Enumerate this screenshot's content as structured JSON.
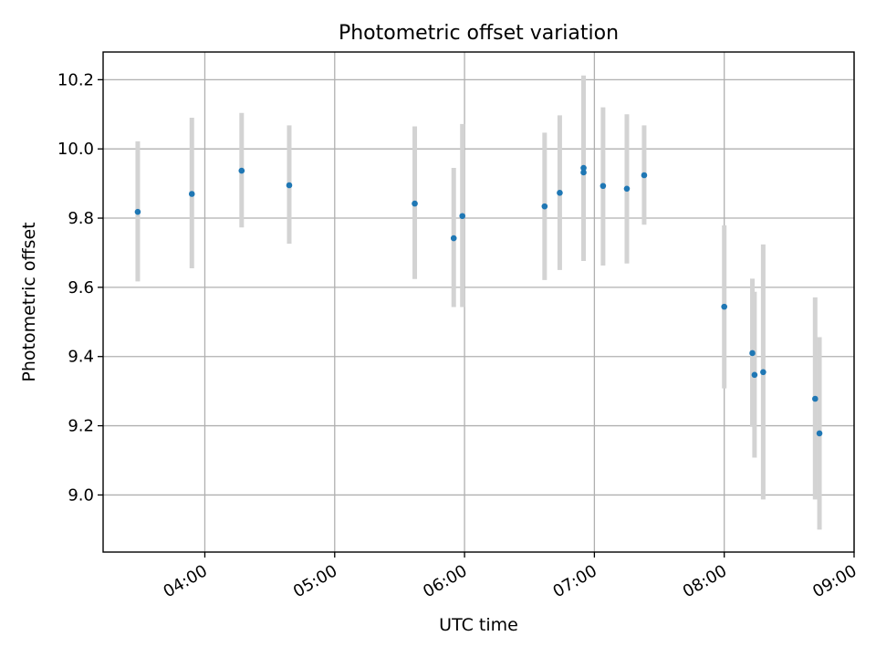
{
  "chart_data": {
    "type": "scatter",
    "title": "Photometric offset variation",
    "xlabel": "UTC time",
    "ylabel": "Photometric offset",
    "x_axis": "time",
    "xlim": [
      "03:13",
      "09:00"
    ],
    "ylim": [
      8.835,
      10.28
    ],
    "x_ticks": [
      "04:00",
      "05:00",
      "06:00",
      "07:00",
      "08:00",
      "09:00"
    ],
    "y_ticks": [
      9.0,
      9.2,
      9.4,
      9.6,
      9.8,
      10.0,
      10.2
    ],
    "grid": true,
    "colors": {
      "point": "#1f77b4",
      "errorbar": "#d3d3d3",
      "grid": "#b0b0b0"
    },
    "series": [
      {
        "points": [
          {
            "t": "03:29",
            "y": 9.818,
            "lo": 9.617,
            "hi": 10.022
          },
          {
            "t": "03:54",
            "y": 9.87,
            "lo": 9.655,
            "hi": 10.09
          },
          {
            "t": "04:17",
            "y": 9.937,
            "lo": 9.773,
            "hi": 10.104
          },
          {
            "t": "04:39",
            "y": 9.895,
            "lo": 9.726,
            "hi": 10.068
          },
          {
            "t": "05:37",
            "y": 9.842,
            "lo": 9.624,
            "hi": 10.065
          },
          {
            "t": "05:55",
            "y": 9.742,
            "lo": 9.543,
            "hi": 9.945
          },
          {
            "t": "05:59",
            "y": 9.806,
            "lo": 9.543,
            "hi": 10.072
          },
          {
            "t": "06:37",
            "y": 9.834,
            "lo": 9.621,
            "hi": 10.047
          },
          {
            "t": "06:44",
            "y": 9.873,
            "lo": 9.65,
            "hi": 10.097
          },
          {
            "t": "06:55",
            "y": 9.932,
            "lo": 9.676,
            "hi": 10.207
          },
          {
            "t": "06:55",
            "y": 9.945,
            "lo": 9.682,
            "hi": 10.212
          },
          {
            "t": "07:04",
            "y": 9.893,
            "lo": 9.663,
            "hi": 10.12
          },
          {
            "t": "07:15",
            "y": 9.885,
            "lo": 9.669,
            "hi": 10.1
          },
          {
            "t": "07:23",
            "y": 9.924,
            "lo": 9.781,
            "hi": 10.068
          },
          {
            "t": "08:00",
            "y": 9.544,
            "lo": 9.308,
            "hi": 9.779
          },
          {
            "t": "08:13",
            "y": 9.41,
            "lo": 9.197,
            "hi": 9.625
          },
          {
            "t": "08:14",
            "y": 9.347,
            "lo": 9.108,
            "hi": 9.587
          },
          {
            "t": "08:18",
            "y": 9.355,
            "lo": 8.987,
            "hi": 9.724
          },
          {
            "t": "08:42",
            "y": 9.278,
            "lo": 8.987,
            "hi": 9.571
          },
          {
            "t": "08:44",
            "y": 9.178,
            "lo": 8.9,
            "hi": 9.456
          }
        ]
      }
    ]
  }
}
